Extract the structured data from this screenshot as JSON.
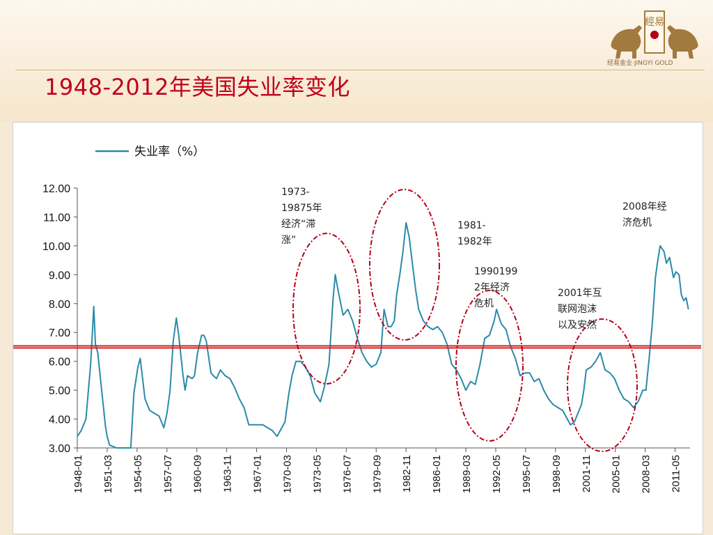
{
  "page": {
    "title": "1948-2012年美国失业率变化"
  },
  "logo": {
    "text": "經易",
    "tagline": "经易金业·JINGYI  GOLD",
    "brand_color": "#a2793e",
    "seal_color": "#b3001a"
  },
  "chart_data": {
    "type": "line",
    "title": "",
    "xlabel": "",
    "ylabel": "",
    "ylim": [
      3,
      12
    ],
    "xlim": [
      "1948-01",
      "2012-12"
    ],
    "legend": {
      "position": "top-left",
      "entries": [
        "失业率（%）"
      ]
    },
    "grid": false,
    "y_ticks": [
      "12.00",
      "11.00",
      "10.00",
      "9.00",
      "8.00",
      "7.00",
      "6.00",
      "5.00",
      "4.00",
      "3.00"
    ],
    "x_ticks": [
      "1948-01",
      "1951-03",
      "1954-05",
      "1957-07",
      "1960-09",
      "1963-11",
      "1967-01",
      "1970-03",
      "1973-05",
      "1976-07",
      "1979-09",
      "1982-11",
      "1986-01",
      "1989-03",
      "1992-05",
      "1995-07",
      "1998-09",
      "2001-11",
      "2005-01",
      "2008-03",
      "2011-05"
    ],
    "reference_line": {
      "y": 6.5,
      "color": "#d32020"
    },
    "series": [
      {
        "name": "失业率（%）",
        "color": "#2a8aa8",
        "x": [
          "1948-01",
          "1948-06",
          "1948-12",
          "1949-06",
          "1949-10",
          "1949-12",
          "1950-03",
          "1950-08",
          "1951-01",
          "1951-03",
          "1951-06",
          "1952-03",
          "1952-06",
          "1953-01",
          "1953-06",
          "1953-09",
          "1954-01",
          "1954-06",
          "1954-09",
          "1955-03",
          "1955-09",
          "1956-03",
          "1956-09",
          "1957-03",
          "1957-07",
          "1957-11",
          "1958-03",
          "1958-07",
          "1958-10",
          "1959-03",
          "1959-06",
          "1959-09",
          "1960-03",
          "1960-06",
          "1960-10",
          "1961-03",
          "1961-06",
          "1961-09",
          "1962-03",
          "1962-06",
          "1962-10",
          "1963-03",
          "1963-09",
          "1964-03",
          "1964-09",
          "1965-03",
          "1965-09",
          "1966-03",
          "1966-09",
          "1967-03",
          "1967-09",
          "1968-03",
          "1968-09",
          "1969-03",
          "1969-09",
          "1970-01",
          "1970-06",
          "1970-10",
          "1971-03",
          "1971-09",
          "1972-03",
          "1972-09",
          "1973-03",
          "1973-10",
          "1974-03",
          "1974-09",
          "1974-12",
          "1975-02",
          "1975-05",
          "1975-09",
          "1976-03",
          "1976-09",
          "1977-03",
          "1977-09",
          "1978-03",
          "1978-09",
          "1979-03",
          "1979-09",
          "1980-03",
          "1980-07",
          "1980-12",
          "1981-04",
          "1981-08",
          "1981-11",
          "1982-03",
          "1982-07",
          "1982-11",
          "1983-03",
          "1983-07",
          "1983-11",
          "1984-03",
          "1984-09",
          "1985-03",
          "1985-09",
          "1986-03",
          "1986-09",
          "1987-03",
          "1987-09",
          "1988-03",
          "1988-09",
          "1989-03",
          "1989-09",
          "1990-03",
          "1990-09",
          "1991-03",
          "1991-09",
          "1992-03",
          "1992-06",
          "1992-12",
          "1993-06",
          "1993-12",
          "1994-06",
          "1994-12",
          "1995-06",
          "1995-12",
          "1996-06",
          "1996-12",
          "1997-06",
          "1997-12",
          "1998-06",
          "1998-12",
          "1999-06",
          "1999-12",
          "2000-04",
          "2000-09",
          "2001-03",
          "2001-06",
          "2001-09",
          "2001-12",
          "2002-06",
          "2002-12",
          "2003-06",
          "2003-12",
          "2004-06",
          "2004-12",
          "2005-06",
          "2005-12",
          "2006-06",
          "2006-12",
          "2007-06",
          "2007-12",
          "2008-04",
          "2008-08",
          "2008-12",
          "2009-04",
          "2009-07",
          "2009-10",
          "2010-03",
          "2010-06",
          "2010-10",
          "2011-03",
          "2011-06",
          "2011-10",
          "2012-01",
          "2012-04",
          "2012-07",
          "2012-10"
        ],
        "values": [
          3.4,
          3.6,
          4.0,
          5.9,
          7.9,
          6.6,
          6.3,
          5.0,
          3.7,
          3.4,
          3.1,
          2.9,
          3.0,
          2.7,
          2.6,
          2.9,
          4.9,
          5.8,
          6.1,
          4.7,
          4.3,
          4.2,
          4.1,
          3.7,
          4.2,
          5.0,
          6.7,
          7.5,
          6.9,
          5.6,
          5.0,
          5.5,
          5.4,
          5.5,
          6.3,
          6.9,
          6.9,
          6.7,
          5.6,
          5.5,
          5.4,
          5.7,
          5.5,
          5.4,
          5.1,
          4.7,
          4.4,
          3.8,
          3.8,
          3.8,
          3.8,
          3.7,
          3.6,
          3.4,
          3.7,
          3.9,
          4.9,
          5.5,
          6.0,
          6.0,
          5.8,
          5.5,
          4.9,
          4.6,
          5.1,
          5.9,
          7.2,
          8.1,
          9.0,
          8.4,
          7.6,
          7.8,
          7.4,
          6.8,
          6.3,
          6.0,
          5.8,
          5.9,
          6.3,
          7.8,
          7.2,
          7.2,
          7.4,
          8.3,
          9.0,
          9.8,
          10.8,
          10.3,
          9.4,
          8.5,
          7.8,
          7.4,
          7.2,
          7.1,
          7.2,
          7.0,
          6.6,
          5.9,
          5.7,
          5.4,
          5.0,
          5.3,
          5.2,
          5.9,
          6.8,
          6.9,
          7.4,
          7.8,
          7.3,
          7.1,
          6.5,
          6.1,
          5.5,
          5.6,
          5.6,
          5.3,
          5.4,
          5.0,
          4.7,
          4.5,
          4.4,
          4.3,
          4.0,
          3.8,
          3.9,
          4.3,
          4.5,
          5.0,
          5.7,
          5.8,
          6.0,
          6.3,
          5.7,
          5.6,
          5.4,
          5.0,
          4.7,
          4.6,
          4.4,
          4.6,
          5.0,
          5.0,
          6.1,
          7.3,
          8.9,
          9.5,
          10.0,
          9.8,
          9.4,
          9.6,
          8.9,
          9.1,
          9.0,
          8.3,
          8.1,
          8.2,
          7.8
        ]
      }
    ],
    "annotations": [
      {
        "lines": [
          "1973-",
          "19875年",
          "经济“滞",
          "涨”"
        ]
      },
      {
        "lines": [
          "1981-",
          "1982年"
        ]
      },
      {
        "lines": [
          "1990199",
          "2年经济",
          "危机"
        ]
      },
      {
        "lines": [
          "2001年互",
          "联网泡沫",
          "以及安然"
        ]
      },
      {
        "lines": [
          "2008年经",
          "济危机"
        ]
      }
    ],
    "highlight_color": "#b3001a"
  }
}
